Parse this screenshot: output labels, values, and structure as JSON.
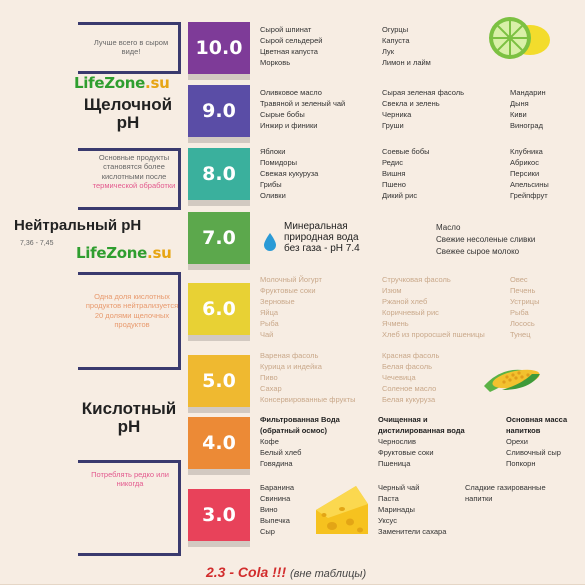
{
  "left_notes": {
    "best_raw": "Лучше всего в сыром виде!",
    "alkaline_after": "Основные продукты становятся более кислотными после",
    "alkaline_after_pink": "термической обработки",
    "ratio": "Одна доля кислотных продуктов нейтрализуется 20 долями щелочных продуктов",
    "rarely": "Потреблять редко или никогда"
  },
  "sections": {
    "alkaline": "Щелочной pH",
    "neutral": "Нейтральный pH",
    "neutral_range": "7,36 - 7,45",
    "acidic": "Кислотный pH"
  },
  "brand": {
    "name": "LifeZone",
    "tld": ".su"
  },
  "levels": [
    {
      "value": "10.0",
      "color": "#7e3b98",
      "cols": [
        [
          "Сырой шпинат",
          "Сырой сельдерей",
          "Цветная капуста",
          "Морковь"
        ],
        [
          "Огурцы",
          "Капуста",
          "Лук",
          "Лимон и лайм"
        ]
      ]
    },
    {
      "value": "9.0",
      "color": "#5a4da6",
      "cols": [
        [
          "Оливковое масло",
          "Травяной и зеленый чай",
          "Сырые бобы",
          "Инжир и финики"
        ],
        [
          "Сырая зеленая фасоль",
          "Свекла и зелень",
          "Черника",
          "Груши"
        ],
        [
          "Мандарин",
          "Дыня",
          "Киви",
          "Виноград"
        ]
      ]
    },
    {
      "value": "8.0",
      "color": "#3ab09d",
      "cols": [
        [
          "Яблоки",
          "Помидоры",
          "Свежая кукуруза",
          "Грибы",
          "Оливки"
        ],
        [
          "Соевые бобы",
          "Редис",
          "Вишня",
          "Пшено",
          "Дикий рис"
        ],
        [
          "Клубника",
          "Абрикос",
          "Персики",
          "Апельсины",
          "Грейпфрут"
        ]
      ]
    },
    {
      "value": "7.0",
      "color": "#5ca84c",
      "cols": [
        [
          "Масло",
          "Свежие несоленые сливки",
          "Свежее сырое молоко"
        ]
      ]
    },
    {
      "value": "6.0",
      "color": "#e8d134",
      "cols": [
        [
          "Молочный Йогурт",
          "Фруктовые соки",
          "Зерновые",
          "Яйца",
          "Рыба",
          "Чай"
        ],
        [
          "Стручковая фасоль",
          "Изюм",
          "Ржаной хлеб",
          "Коричневый рис",
          "Ячмень",
          "Хлеб из проросшей пшеницы"
        ],
        [
          "Овес",
          "Печень",
          "Устрицы",
          "Рыба",
          "Лосось",
          "Тунец"
        ]
      ]
    },
    {
      "value": "5.0",
      "color": "#efb930",
      "cols": [
        [
          "Вареная фасоль",
          "Курица и индейка",
          "Пиво",
          "Сахар",
          "Консервированные фрукты"
        ],
        [
          "Красная фасоль",
          "Белая фасоль",
          "Чечевица",
          "Соленое масло",
          "Белая кукуруза"
        ]
      ]
    },
    {
      "value": "4.0",
      "color": "#ec8a36",
      "cols": [
        [
          "Фильтрованная Вода",
          "(обратный осмос)",
          "Кофе",
          "Белый хлеб",
          "Говядина"
        ],
        [
          "Очищенная и",
          "дистилированная вода",
          "Чернослив",
          "Фруктовые соки",
          "Пшеница"
        ],
        [
          "Основная масса",
          "напитков",
          "Орехи",
          "Сливочный сыр",
          "Попкорн"
        ]
      ]
    },
    {
      "value": "3.0",
      "color": "#e8425a",
      "cols": [
        [
          "Баранина",
          "Свинина",
          "Вино",
          "Выпечка",
          "Сыр"
        ],
        [
          "Черный чай",
          "Паста",
          "Маринады",
          "Уксус",
          "Заменители сахара"
        ],
        [
          "Сладкие газированные",
          "напитки"
        ]
      ]
    }
  ],
  "water": {
    "line1": "Минеральная",
    "line2": "природная вода",
    "line3": "без газа - pH 7.4"
  },
  "bottom": {
    "main": "2.3  - Cola !!!",
    "paren": "(вне таблицы)"
  },
  "icons": [
    "lime-lemon-icon",
    "water-drop-icon",
    "corn-icon",
    "cheese-icon"
  ]
}
